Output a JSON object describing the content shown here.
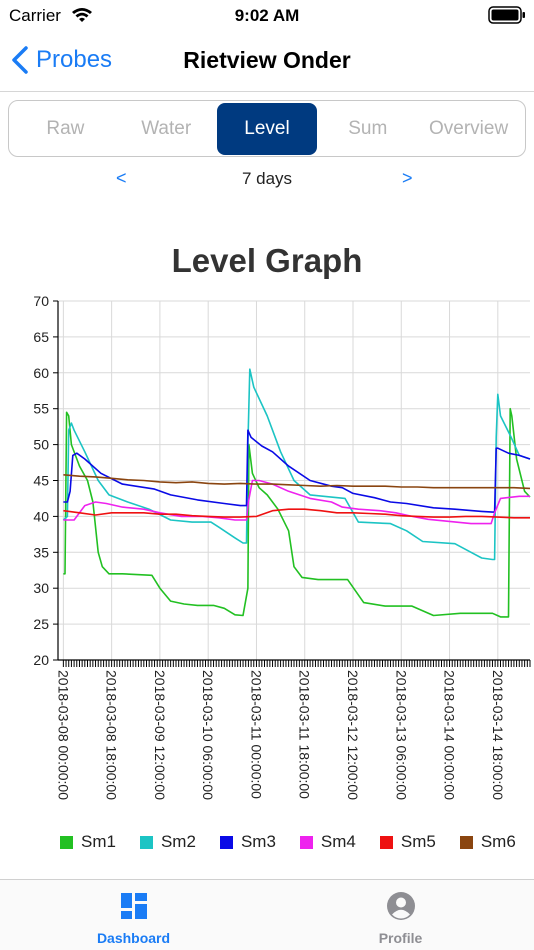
{
  "status_bar": {
    "carrier": "Carrier",
    "time": "9:02 AM"
  },
  "nav": {
    "back_label": "Probes",
    "title": "Rietview Onder"
  },
  "segments": [
    {
      "label": "Raw",
      "active": false
    },
    {
      "label": "Water",
      "active": false
    },
    {
      "label": "Level",
      "active": true
    },
    {
      "label": "Sum",
      "active": false
    },
    {
      "label": "Overview",
      "active": false
    }
  ],
  "range": {
    "prev": "<",
    "label": "7 days",
    "next": ">"
  },
  "chart_data": {
    "type": "line",
    "title": "Level Graph",
    "xlabel": "",
    "ylabel": "",
    "ylim": [
      20,
      70
    ],
    "yticks": [
      20,
      25,
      30,
      35,
      40,
      45,
      50,
      55,
      60,
      65,
      70
    ],
    "xlim_hours": [
      -2,
      174
    ],
    "x_tick_labels": [
      "2018-03-08 00:00:00",
      "2018-03-08 18:00:00",
      "2018-03-09 12:00:00",
      "2018-03-10 06:00:00",
      "2018-03-11 00:00:00",
      "2018-03-11 18:00:00",
      "2018-03-12 12:00:00",
      "2018-03-13 06:00:00",
      "2018-03-14 00:00:00",
      "2018-03-14 18:00:00"
    ],
    "x_tick_hours": [
      0,
      18,
      36,
      54,
      72,
      90,
      108,
      126,
      144,
      162
    ],
    "grid": true,
    "legend_position": "bottom",
    "series": [
      {
        "name": "Sm1",
        "color": "#22c022",
        "points": [
          [
            0,
            32
          ],
          [
            0.6,
            32
          ],
          [
            1.2,
            54.5
          ],
          [
            2,
            54
          ],
          [
            3,
            50
          ],
          [
            6,
            47
          ],
          [
            9,
            45
          ],
          [
            11,
            42
          ],
          [
            13,
            35
          ],
          [
            14.5,
            33
          ],
          [
            17,
            32
          ],
          [
            22,
            32
          ],
          [
            33,
            31.8
          ],
          [
            36,
            30
          ],
          [
            40,
            28.2
          ],
          [
            45,
            27.8
          ],
          [
            50,
            27.6
          ],
          [
            56,
            27.6
          ],
          [
            60,
            27.2
          ],
          [
            64,
            26.3
          ],
          [
            67,
            26.2
          ],
          [
            68.8,
            30
          ],
          [
            69.2,
            50
          ],
          [
            70.5,
            46
          ],
          [
            73,
            44
          ],
          [
            76,
            43
          ],
          [
            80,
            41
          ],
          [
            84,
            38
          ],
          [
            86,
            33
          ],
          [
            89,
            31.5
          ],
          [
            95,
            31.2
          ],
          [
            106,
            31.2
          ],
          [
            112,
            28
          ],
          [
            120,
            27.5
          ],
          [
            130,
            27.5
          ],
          [
            138,
            26.2
          ],
          [
            148,
            26.5
          ],
          [
            160,
            26.5
          ],
          [
            163,
            26
          ],
          [
            166,
            26
          ],
          [
            166.6,
            55
          ],
          [
            167.2,
            54
          ],
          [
            169,
            48
          ],
          [
            172,
            43.5
          ],
          [
            174,
            42.7
          ]
        ]
      },
      {
        "name": "Sm2",
        "color": "#1cc4c4",
        "points": [
          [
            0,
            39.5
          ],
          [
            1.5,
            40
          ],
          [
            2,
            52
          ],
          [
            3,
            53
          ],
          [
            4,
            52
          ],
          [
            8,
            49
          ],
          [
            13,
            45
          ],
          [
            17,
            43
          ],
          [
            24,
            42
          ],
          [
            32,
            41
          ],
          [
            40,
            39.5
          ],
          [
            48,
            39.2
          ],
          [
            55,
            39.2
          ],
          [
            58,
            38.5
          ],
          [
            64,
            37
          ],
          [
            67,
            36.3
          ],
          [
            68.3,
            36.3
          ],
          [
            68.8,
            50
          ],
          [
            69.5,
            60.5
          ],
          [
            71,
            58
          ],
          [
            76,
            54
          ],
          [
            81,
            49
          ],
          [
            86,
            45
          ],
          [
            92,
            43
          ],
          [
            105,
            42.5
          ],
          [
            110,
            39.2
          ],
          [
            122,
            39
          ],
          [
            128,
            38
          ],
          [
            134,
            36.5
          ],
          [
            146,
            36.2
          ],
          [
            152,
            35
          ],
          [
            156,
            34.2
          ],
          [
            160,
            34
          ],
          [
            160.8,
            34
          ],
          [
            161.4,
            51
          ],
          [
            162,
            57
          ],
          [
            163,
            54
          ],
          [
            167,
            51
          ],
          [
            170,
            48.5
          ],
          [
            174,
            48
          ]
        ]
      },
      {
        "name": "Sm3",
        "color": "#0a0ae6",
        "points": [
          [
            0,
            42
          ],
          [
            1.5,
            42
          ],
          [
            2.5,
            43.5
          ],
          [
            3.5,
            48.5
          ],
          [
            5,
            48.8
          ],
          [
            8,
            48
          ],
          [
            14,
            46
          ],
          [
            22,
            44.5
          ],
          [
            34,
            43.8
          ],
          [
            40,
            43
          ],
          [
            50,
            42.3
          ],
          [
            60,
            41.8
          ],
          [
            66,
            41.5
          ],
          [
            68.3,
            41.5
          ],
          [
            68.8,
            52
          ],
          [
            70,
            51
          ],
          [
            74,
            49.8
          ],
          [
            78,
            49
          ],
          [
            84,
            47
          ],
          [
            92,
            45
          ],
          [
            100,
            44.2
          ],
          [
            104,
            44
          ],
          [
            108,
            43.2
          ],
          [
            116,
            42.6
          ],
          [
            122,
            42
          ],
          [
            128,
            41.8
          ],
          [
            138,
            41.2
          ],
          [
            146,
            41
          ],
          [
            156,
            40.7
          ],
          [
            160,
            40.6
          ],
          [
            160.8,
            40.6
          ],
          [
            161.4,
            49.5
          ],
          [
            162,
            49.5
          ],
          [
            166,
            48.8
          ],
          [
            170,
            48.5
          ],
          [
            174,
            48
          ]
        ]
      },
      {
        "name": "Sm4",
        "color": "#ee22ee",
        "points": [
          [
            0,
            39.5
          ],
          [
            4,
            39.5
          ],
          [
            8,
            41.5
          ],
          [
            12,
            42
          ],
          [
            16,
            41.8
          ],
          [
            22,
            41.3
          ],
          [
            30,
            41
          ],
          [
            36,
            40.5
          ],
          [
            44,
            40
          ],
          [
            52,
            40
          ],
          [
            58,
            39.8
          ],
          [
            64,
            39.5
          ],
          [
            68.3,
            39.5
          ],
          [
            69,
            42
          ],
          [
            70.5,
            45
          ],
          [
            73,
            45
          ],
          [
            78,
            44.5
          ],
          [
            84,
            43.5
          ],
          [
            92,
            42.5
          ],
          [
            100,
            42
          ],
          [
            104,
            41.3
          ],
          [
            110,
            41
          ],
          [
            118,
            40.8
          ],
          [
            124,
            40.5
          ],
          [
            130,
            40
          ],
          [
            136,
            39.6
          ],
          [
            144,
            39.3
          ],
          [
            152,
            39
          ],
          [
            158,
            39
          ],
          [
            159.5,
            39
          ],
          [
            160.8,
            40.5
          ],
          [
            163,
            42.5
          ],
          [
            170,
            42.8
          ],
          [
            174,
            42.8
          ]
        ]
      },
      {
        "name": "Sm5",
        "color": "#ee1111",
        "points": [
          [
            0,
            40.8
          ],
          [
            6,
            40.5
          ],
          [
            12,
            40.2
          ],
          [
            18,
            40.5
          ],
          [
            24,
            40.5
          ],
          [
            30,
            40.5
          ],
          [
            36,
            40.3
          ],
          [
            42,
            40.3
          ],
          [
            48,
            40.1
          ],
          [
            54,
            40
          ],
          [
            60,
            39.9
          ],
          [
            66,
            39.9
          ],
          [
            72,
            40
          ],
          [
            78,
            40.8
          ],
          [
            84,
            41
          ],
          [
            90,
            41
          ],
          [
            96,
            40.8
          ],
          [
            102,
            40.5
          ],
          [
            108,
            40.5
          ],
          [
            114,
            40.4
          ],
          [
            120,
            40.3
          ],
          [
            126,
            40.1
          ],
          [
            132,
            40
          ],
          [
            138,
            39.9
          ],
          [
            144,
            39.9
          ],
          [
            150,
            40
          ],
          [
            156,
            40
          ],
          [
            162,
            39.9
          ],
          [
            168,
            39.8
          ],
          [
            174,
            39.8
          ]
        ]
      },
      {
        "name": "Sm6",
        "color": "#8a4510",
        "points": [
          [
            0,
            45.8
          ],
          [
            6,
            45.6
          ],
          [
            12,
            45.5
          ],
          [
            18,
            45.3
          ],
          [
            24,
            45.1
          ],
          [
            30,
            45
          ],
          [
            36,
            44.8
          ],
          [
            42,
            44.7
          ],
          [
            48,
            44.8
          ],
          [
            54,
            44.6
          ],
          [
            60,
            44.5
          ],
          [
            66,
            44.6
          ],
          [
            72,
            44.5
          ],
          [
            78,
            44.5
          ],
          [
            84,
            44.4
          ],
          [
            90,
            44.3
          ],
          [
            96,
            44.2
          ],
          [
            102,
            44.3
          ],
          [
            108,
            44.2
          ],
          [
            114,
            44.2
          ],
          [
            120,
            44.2
          ],
          [
            126,
            44.1
          ],
          [
            132,
            44.1
          ],
          [
            138,
            44
          ],
          [
            144,
            44
          ],
          [
            150,
            44
          ],
          [
            156,
            44
          ],
          [
            162,
            44
          ],
          [
            168,
            44
          ],
          [
            174,
            43.9
          ]
        ]
      }
    ]
  },
  "legend": [
    {
      "name": "Sm1",
      "color": "#22c022"
    },
    {
      "name": "Sm2",
      "color": "#1cc4c4"
    },
    {
      "name": "Sm3",
      "color": "#0a0ae6"
    },
    {
      "name": "Sm4",
      "color": "#ee22ee"
    },
    {
      "name": "Sm5",
      "color": "#ee1111"
    },
    {
      "name": "Sm6",
      "color": "#8a4510"
    }
  ],
  "tab_bar": {
    "items": [
      {
        "label": "Dashboard",
        "icon": "dashboard-icon",
        "active": true,
        "color": "#1a7cf5"
      },
      {
        "label": "Profile",
        "icon": "profile-icon",
        "active": false,
        "color": "#8e8e93"
      }
    ]
  }
}
